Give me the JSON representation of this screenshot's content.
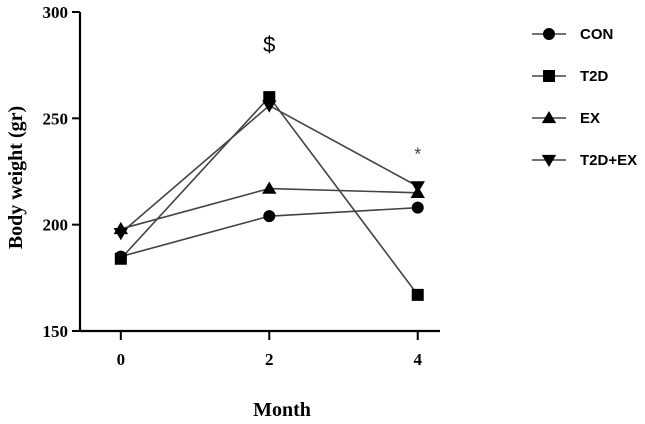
{
  "chart_data": {
    "type": "line",
    "title": "",
    "xlabel": "Month",
    "ylabel": "Body weight (gr)",
    "x": [
      0,
      2,
      4
    ],
    "x_tick_labels": [
      "0",
      "2",
      "4"
    ],
    "ylim": [
      150,
      300
    ],
    "y_ticks": [
      150,
      200,
      250,
      300
    ],
    "y_tick_labels": [
      "150",
      "200",
      "250",
      "300"
    ],
    "grid": false,
    "legend_position": "top-right",
    "series": [
      {
        "name": "CON",
        "marker": "circle",
        "values": [
          185,
          204,
          208
        ]
      },
      {
        "name": "T2D",
        "marker": "square",
        "values": [
          184,
          260,
          167
        ]
      },
      {
        "name": "EX",
        "marker": "triangle-up",
        "values": [
          198,
          217,
          215
        ]
      },
      {
        "name": "T2D+EX",
        "marker": "triangle-down",
        "values": [
          196,
          256,
          218
        ]
      }
    ],
    "annotations": [
      {
        "text": "$",
        "x": 2,
        "y": 285
      },
      {
        "text": "*",
        "x": 4,
        "y": 234
      }
    ],
    "colors": {
      "line": "#444444",
      "marker": "#000000",
      "axis": "#000000"
    }
  }
}
